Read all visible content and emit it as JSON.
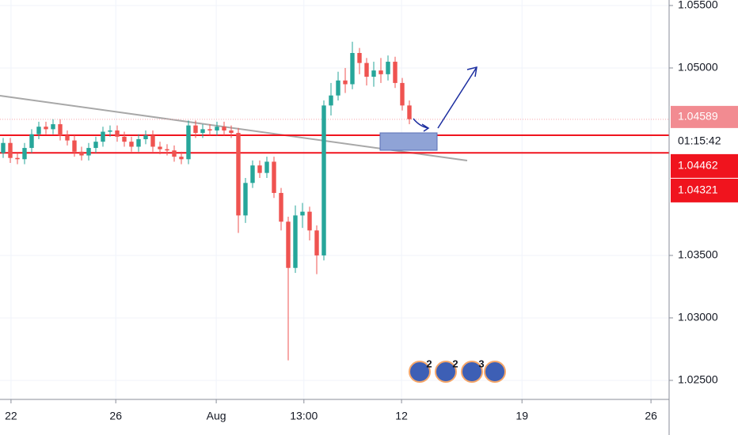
{
  "chart_data": {
    "type": "candlestick",
    "x": [
      0,
      1,
      2,
      3,
      4,
      5,
      6,
      7,
      8,
      9,
      10,
      11,
      12,
      13,
      14,
      15,
      16,
      17,
      18,
      19,
      20,
      21,
      22,
      23,
      24,
      25,
      26,
      27,
      28,
      29,
      30,
      31,
      32,
      33,
      34,
      35,
      36,
      37,
      38,
      39,
      40,
      41,
      42,
      43,
      44,
      45,
      46,
      47,
      48,
      49,
      50,
      51,
      52,
      53,
      54,
      55,
      56,
      57
    ],
    "open": [
      1.0432,
      1.044,
      1.0428,
      1.0427,
      1.0436,
      1.0447,
      1.0453,
      1.0451,
      1.0455,
      1.0446,
      1.0442,
      1.0433,
      1.043,
      1.0436,
      1.0441,
      1.0449,
      1.045,
      1.0445,
      1.0441,
      1.0437,
      1.0443,
      1.0446,
      1.0437,
      1.0435,
      1.0434,
      1.0429,
      1.0427,
      1.0454,
      1.0448,
      1.0451,
      1.045,
      1.0453,
      1.045,
      1.0448,
      1.0382,
      1.0408,
      1.0422,
      1.0416,
      1.0425,
      1.04,
      1.0377,
      1.034,
      1.0382,
      1.0385,
      1.037,
      1.035,
      1.047,
      1.0478,
      1.049,
      1.0487,
      1.0512,
      1.0504,
      1.0493,
      1.0498,
      1.0495,
      1.0505,
      1.0488,
      1.047
    ],
    "high": [
      1.0444,
      1.0444,
      1.0432,
      1.044,
      1.0451,
      1.0457,
      1.0457,
      1.0459,
      1.0459,
      1.045,
      1.0446,
      1.0437,
      1.044,
      1.0445,
      1.0453,
      1.0454,
      1.0454,
      1.0449,
      1.0445,
      1.0447,
      1.045,
      1.045,
      1.0441,
      1.0439,
      1.0438,
      1.0433,
      1.0458,
      1.0458,
      1.0455,
      1.0455,
      1.0457,
      1.0457,
      1.0454,
      1.0452,
      1.0412,
      1.0426,
      1.0426,
      1.0429,
      1.0429,
      1.0404,
      1.0381,
      1.039,
      1.0392,
      1.0389,
      1.0374,
      1.0474,
      1.0488,
      1.0497,
      1.05,
      1.0521,
      1.0516,
      1.0508,
      1.0505,
      1.0508,
      1.051,
      1.0509,
      1.0492,
      1.0474
    ],
    "low": [
      1.0428,
      1.0424,
      1.0423,
      1.0423,
      1.0432,
      1.0443,
      1.0447,
      1.0447,
      1.0442,
      1.0438,
      1.0429,
      1.0426,
      1.0426,
      1.0432,
      1.0437,
      1.0445,
      1.0441,
      1.0437,
      1.0433,
      1.0433,
      1.0439,
      1.0433,
      1.0431,
      1.043,
      1.0425,
      1.0423,
      1.0423,
      1.0444,
      1.0444,
      1.0446,
      1.0446,
      1.0446,
      1.0444,
      1.0368,
      1.0376,
      1.0404,
      1.0412,
      1.0412,
      1.0396,
      1.037,
      1.0266,
      1.0336,
      1.0372,
      1.0362,
      1.0335,
      1.0346,
      1.0462,
      1.0474,
      1.048,
      1.0483,
      1.0495,
      1.0486,
      1.0485,
      1.0488,
      1.049,
      1.0484,
      1.0466,
      1.0455
    ],
    "close": [
      1.044,
      1.0428,
      1.0427,
      1.0436,
      1.0447,
      1.0453,
      1.0451,
      1.0455,
      1.0446,
      1.0442,
      1.0433,
      1.043,
      1.0436,
      1.0441,
      1.0449,
      1.045,
      1.0445,
      1.0441,
      1.0437,
      1.0443,
      1.0446,
      1.0437,
      1.0435,
      1.0434,
      1.0429,
      1.0427,
      1.0454,
      1.0448,
      1.0451,
      1.045,
      1.0453,
      1.045,
      1.0448,
      1.0382,
      1.0408,
      1.0422,
      1.0416,
      1.0425,
      1.04,
      1.0377,
      1.034,
      1.0382,
      1.0385,
      1.037,
      1.035,
      1.047,
      1.0478,
      1.049,
      1.0487,
      1.0512,
      1.0504,
      1.0493,
      1.0498,
      1.0495,
      1.0505,
      1.0488,
      1.047,
      1.0459
    ],
    "up_color": "#26a69a",
    "down_color": "#ef5350",
    "xlim": [
      -0.444,
      93.444
    ],
    "xticks": [
      {
        "value": 1.1,
        "label": "22"
      },
      {
        "value": 15.8,
        "label": "26"
      },
      {
        "value": 29.9,
        "label": "Aug"
      },
      {
        "value": 42.2,
        "label": "13:00"
      },
      {
        "value": 55.9,
        "label": "12"
      },
      {
        "value": 72.8,
        "label": "19"
      },
      {
        "value": 90.9,
        "label": "26"
      }
    ],
    "ylim": [
      1.02411,
      1.05544
    ],
    "yticks": [
      {
        "value": 1.055,
        "label": "1.05500"
      },
      {
        "value": 1.05,
        "label": "1.05000"
      },
      {
        "value": 1.035,
        "label": "1.03500"
      },
      {
        "value": 1.03,
        "label": "1.03000"
      },
      {
        "value": 1.025,
        "label": "1.02500"
      }
    ],
    "grid": true,
    "last_price": 1.04589,
    "countdown": "01:15:42",
    "levels": [
      1.04462,
      1.04321
    ],
    "level_color": "#f0141e",
    "event_counts": [
      2,
      2,
      3
    ]
  }
}
